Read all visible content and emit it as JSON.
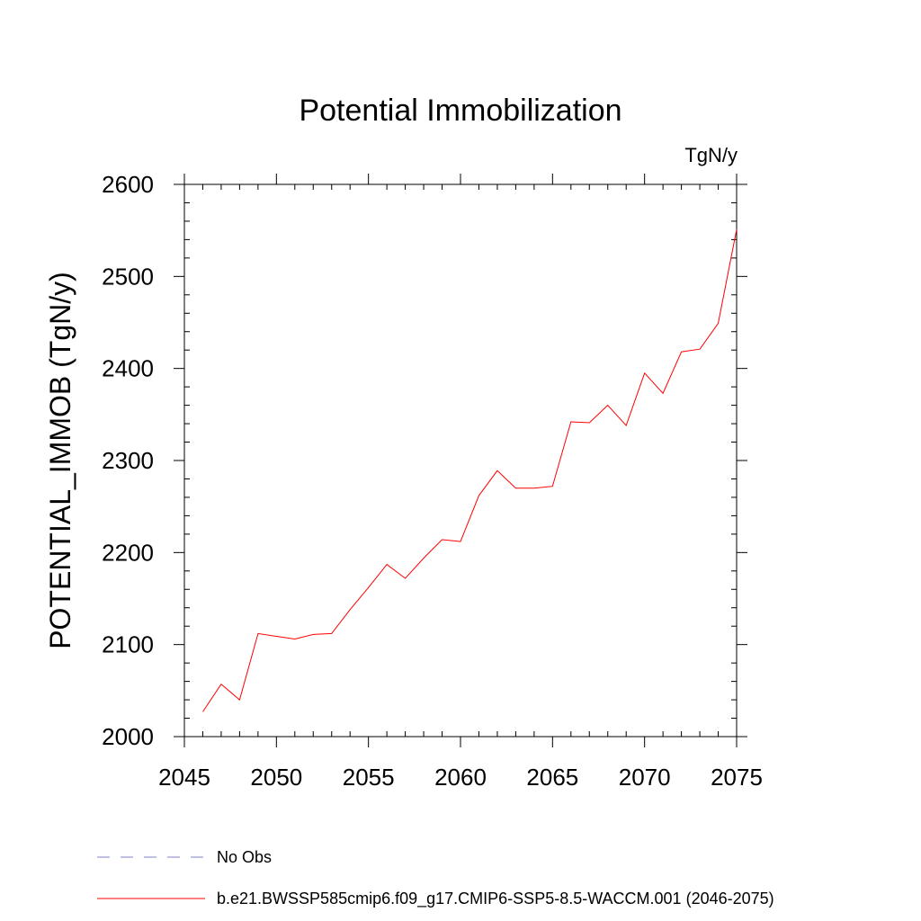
{
  "chart_data": {
    "type": "line",
    "title": "Potential Immobilization",
    "units_label": "TgN/y",
    "xlabel": "",
    "ylabel": "POTENTIAL_IMMOB  (TgN/y)",
    "xlim": [
      2045,
      2075
    ],
    "ylim": [
      2000,
      2600
    ],
    "x_ticks": [
      2045,
      2050,
      2055,
      2060,
      2065,
      2070,
      2075
    ],
    "y_ticks": [
      2000,
      2100,
      2200,
      2300,
      2400,
      2500,
      2600
    ],
    "x_tick_labels": [
      "2045",
      "2050",
      "2055",
      "2060",
      "2065",
      "2070",
      "2075"
    ],
    "y_tick_labels": [
      "2000",
      "2100",
      "2200",
      "2300",
      "2400",
      "2500",
      "2600"
    ],
    "grid": false,
    "series": [
      {
        "name": "b.e21.BWSSP585cmip6.f09_g17.CMIP6-SSP5-8.5-WACCM.001 (2046-2075)",
        "color": "#ff0000",
        "x": [
          2046,
          2047,
          2048,
          2049,
          2050,
          2051,
          2052,
          2053,
          2054,
          2055,
          2056,
          2057,
          2058,
          2059,
          2060,
          2061,
          2062,
          2063,
          2064,
          2065,
          2066,
          2067,
          2068,
          2069,
          2070,
          2071,
          2072,
          2073,
          2074,
          2075
        ],
        "values": [
          2027,
          2057,
          2040,
          2112,
          2109,
          2106,
          2111,
          2112,
          2138,
          2162,
          2187,
          2172,
          2194,
          2214,
          2212,
          2262,
          2289,
          2270,
          2270,
          2272,
          2342,
          2341,
          2360,
          2338,
          2395,
          2373,
          2418,
          2421,
          2449,
          2551
        ]
      }
    ],
    "legend": [
      {
        "label": "No Obs",
        "style": "dashed",
        "color": "#8080c0"
      },
      {
        "label": "b.e21.BWSSP585cmip6.f09_g17.CMIP6-SSP5-8.5-WACCM.001 (2046-2075)",
        "style": "solid",
        "color": "#ff0000"
      }
    ]
  }
}
